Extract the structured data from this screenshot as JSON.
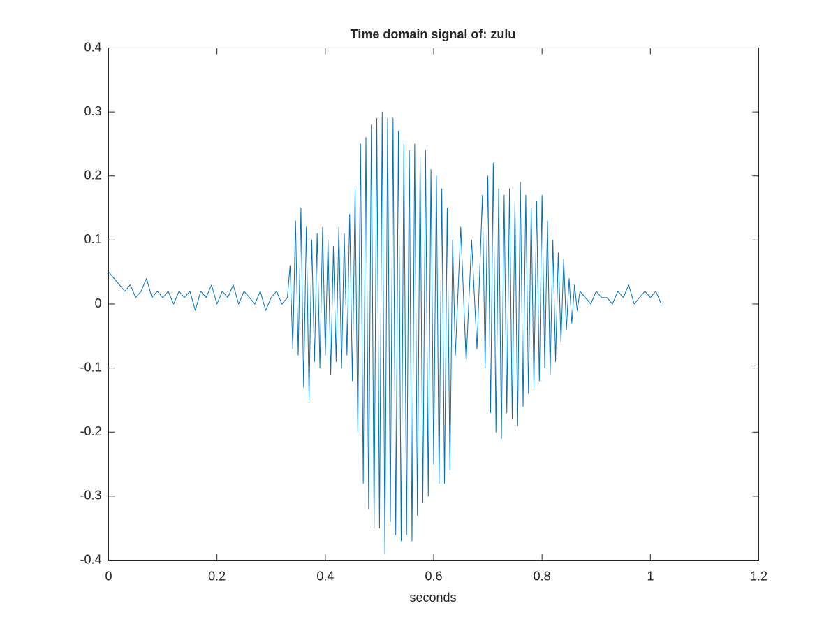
{
  "chart_data": {
    "type": "line",
    "title": "Time domain signal of: zulu",
    "x_label": "seconds",
    "color": "#0072bd",
    "xlim": [
      0,
      1.2
    ],
    "xticks": [
      0,
      0.2,
      0.4,
      0.6,
      0.8,
      1,
      1.2
    ],
    "ylim": [
      -0.4,
      0.4
    ],
    "yticks": [
      -0.4,
      -0.3,
      -0.2,
      -0.1,
      0,
      0.1,
      0.2,
      0.3,
      0.4
    ],
    "x": [
      0,
      0.01,
      0.02,
      0.03,
      0.04,
      0.05,
      0.06,
      0.07,
      0.08,
      0.09,
      0.1,
      0.11,
      0.12,
      0.13,
      0.14,
      0.15,
      0.16,
      0.17,
      0.18,
      0.19,
      0.2,
      0.21,
      0.22,
      0.23,
      0.24,
      0.25,
      0.26,
      0.27,
      0.28,
      0.29,
      0.3,
      0.31,
      0.32,
      0.33,
      0.335,
      0.34,
      0.345,
      0.35,
      0.355,
      0.36,
      0.365,
      0.37,
      0.375,
      0.38,
      0.385,
      0.39,
      0.395,
      0.4,
      0.405,
      0.41,
      0.415,
      0.42,
      0.425,
      0.43,
      0.435,
      0.44,
      0.445,
      0.45,
      0.455,
      0.46,
      0.465,
      0.47,
      0.475,
      0.48,
      0.485,
      0.49,
      0.495,
      0.5,
      0.505,
      0.51,
      0.515,
      0.52,
      0.525,
      0.53,
      0.535,
      0.54,
      0.545,
      0.55,
      0.555,
      0.56,
      0.565,
      0.57,
      0.575,
      0.58,
      0.585,
      0.59,
      0.595,
      0.6,
      0.605,
      0.61,
      0.615,
      0.62,
      0.625,
      0.63,
      0.635,
      0.64,
      0.65,
      0.66,
      0.67,
      0.68,
      0.69,
      0.695,
      0.7,
      0.705,
      0.71,
      0.715,
      0.72,
      0.725,
      0.73,
      0.735,
      0.74,
      0.745,
      0.75,
      0.755,
      0.76,
      0.765,
      0.77,
      0.775,
      0.78,
      0.785,
      0.79,
      0.795,
      0.8,
      0.805,
      0.81,
      0.815,
      0.82,
      0.825,
      0.83,
      0.835,
      0.84,
      0.845,
      0.85,
      0.855,
      0.86,
      0.865,
      0.87,
      0.88,
      0.89,
      0.9,
      0.91,
      0.92,
      0.93,
      0.94,
      0.95,
      0.96,
      0.97,
      0.98,
      0.99,
      1,
      1.01,
      1.02
    ],
    "values": [
      0.05,
      0.04,
      0.03,
      0.02,
      0.03,
      0.01,
      0.02,
      0.04,
      0.01,
      0.02,
      0.01,
      0.02,
      0,
      0.02,
      0.01,
      0.02,
      -0.01,
      0.02,
      0.01,
      0.03,
      0,
      0.02,
      0.01,
      0.03,
      0,
      0.02,
      0.01,
      0,
      0.02,
      -0.01,
      0.01,
      0.02,
      0,
      0.01,
      0.06,
      -0.07,
      0.13,
      -0.08,
      0.15,
      -0.13,
      0.12,
      -0.15,
      0.1,
      -0.09,
      0.11,
      -0.1,
      0.12,
      -0.08,
      0.1,
      -0.11,
      0.09,
      -0.09,
      0.12,
      -0.1,
      0.11,
      -0.08,
      0.14,
      -0.12,
      0.18,
      -0.2,
      0.25,
      -0.28,
      0.26,
      -0.32,
      0.28,
      -0.35,
      0.29,
      -0.35,
      0.3,
      -0.39,
      0.29,
      -0.34,
      0.29,
      -0.36,
      0.27,
      -0.37,
      0.25,
      -0.36,
      0.24,
      -0.37,
      0.25,
      -0.33,
      0.23,
      -0.31,
      0.24,
      -0.3,
      0.21,
      -0.25,
      0.2,
      -0.28,
      0.18,
      -0.28,
      0.15,
      -0.26,
      0.1,
      -0.08,
      0.12,
      -0.09,
      0.1,
      -0.07,
      0.17,
      -0.1,
      0.2,
      -0.17,
      0.22,
      -0.2,
      0.18,
      -0.21,
      0.17,
      -0.17,
      0.18,
      -0.18,
      0.16,
      -0.19,
      0.19,
      -0.16,
      0.17,
      -0.14,
      0.15,
      -0.13,
      0.16,
      -0.12,
      0.17,
      -0.1,
      0.13,
      -0.11,
      0.1,
      -0.09,
      0.08,
      -0.06,
      0.07,
      -0.04,
      0.04,
      -0.03,
      0.03,
      -0.01,
      0.02,
      0.01,
      0,
      0.02,
      0.01,
      0.01,
      0,
      0.02,
      0.01,
      0.03,
      0,
      0.01,
      0.02,
      0.01,
      0.02,
      0
    ]
  }
}
